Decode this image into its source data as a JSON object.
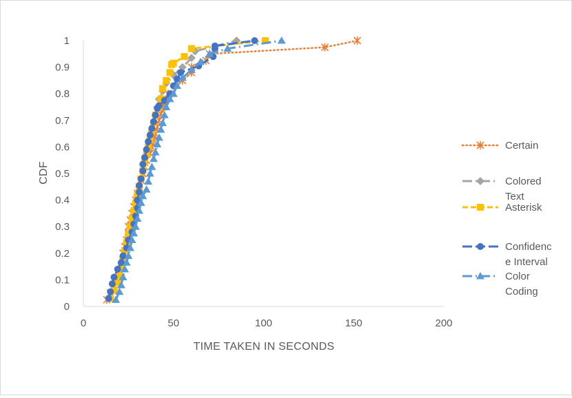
{
  "chart_data": {
    "type": "scatter",
    "title": "",
    "xlabel": "TIME TAKEN IN SECONDS",
    "ylabel": "CDF",
    "xlim": [
      0,
      200
    ],
    "ylim": [
      0,
      1
    ],
    "x_ticks": [
      "0",
      "50",
      "100",
      "150",
      "200"
    ],
    "y_ticks": [
      "0",
      "0.1",
      "0.2",
      "0.3",
      "0.4",
      "0.5",
      "0.6",
      "0.7",
      "0.8",
      "0.9",
      "1"
    ],
    "grid": "horizontal-none",
    "legend_position": "right",
    "series": [
      {
        "name": "Certain",
        "color": "#ED7D31",
        "marker": "asterisk",
        "line": "dotted",
        "points": [
          [
            13,
            0.025
          ],
          [
            15,
            0.05
          ],
          [
            17,
            0.075
          ],
          [
            19,
            0.1
          ],
          [
            20,
            0.125
          ],
          [
            21,
            0.15
          ],
          [
            22,
            0.175
          ],
          [
            22,
            0.2
          ],
          [
            23,
            0.225
          ],
          [
            24,
            0.25
          ],
          [
            25,
            0.275
          ],
          [
            25,
            0.3
          ],
          [
            26,
            0.325
          ],
          [
            27,
            0.35
          ],
          [
            28,
            0.375
          ],
          [
            29,
            0.4
          ],
          [
            30,
            0.425
          ],
          [
            31,
            0.45
          ],
          [
            32,
            0.475
          ],
          [
            33,
            0.5
          ],
          [
            34,
            0.525
          ],
          [
            35,
            0.55
          ],
          [
            37,
            0.575
          ],
          [
            38,
            0.6
          ],
          [
            39,
            0.625
          ],
          [
            40,
            0.65
          ],
          [
            41,
            0.675
          ],
          [
            42,
            0.7
          ],
          [
            43,
            0.725
          ],
          [
            44,
            0.75
          ],
          [
            45,
            0.775
          ],
          [
            47,
            0.8
          ],
          [
            55,
            0.85
          ],
          [
            60,
            0.88
          ],
          [
            60,
            0.9
          ],
          [
            68,
            0.925
          ],
          [
            70,
            0.95
          ],
          [
            134,
            0.975
          ],
          [
            152,
            1.0
          ]
        ]
      },
      {
        "name": "Colored Text",
        "color": "#A5A5A5",
        "marker": "diamond",
        "line": "dash-dot",
        "points": [
          [
            14,
            0.03
          ],
          [
            16,
            0.06
          ],
          [
            18,
            0.09
          ],
          [
            19,
            0.12
          ],
          [
            21,
            0.15
          ],
          [
            22,
            0.18
          ],
          [
            23,
            0.21
          ],
          [
            24,
            0.24
          ],
          [
            25,
            0.27
          ],
          [
            26,
            0.3
          ],
          [
            27,
            0.33
          ],
          [
            28,
            0.36
          ],
          [
            29,
            0.39
          ],
          [
            30,
            0.42
          ],
          [
            31,
            0.45
          ],
          [
            32,
            0.48
          ],
          [
            33,
            0.51
          ],
          [
            34,
            0.54
          ],
          [
            35,
            0.57
          ],
          [
            36,
            0.6
          ],
          [
            37,
            0.63
          ],
          [
            38,
            0.66
          ],
          [
            39,
            0.69
          ],
          [
            40,
            0.72
          ],
          [
            41,
            0.75
          ],
          [
            42,
            0.78
          ],
          [
            44,
            0.81
          ],
          [
            46,
            0.84
          ],
          [
            50,
            0.87
          ],
          [
            55,
            0.9
          ],
          [
            60,
            0.935
          ],
          [
            62,
            0.96
          ],
          [
            85,
            1.0
          ]
        ]
      },
      {
        "name": "Asterisk",
        "color": "#FFC000",
        "marker": "square",
        "line": "dashed",
        "points": [
          [
            15,
            0.03
          ],
          [
            17,
            0.06
          ],
          [
            19,
            0.09
          ],
          [
            20,
            0.12
          ],
          [
            21,
            0.15
          ],
          [
            22,
            0.18
          ],
          [
            23,
            0.21
          ],
          [
            24,
            0.24
          ],
          [
            25,
            0.27
          ],
          [
            26,
            0.3
          ],
          [
            27,
            0.33
          ],
          [
            28,
            0.36
          ],
          [
            29,
            0.39
          ],
          [
            30,
            0.42
          ],
          [
            31,
            0.45
          ],
          [
            32,
            0.48
          ],
          [
            33,
            0.51
          ],
          [
            34,
            0.54
          ],
          [
            35,
            0.57
          ],
          [
            36,
            0.6
          ],
          [
            37,
            0.63
          ],
          [
            38,
            0.66
          ],
          [
            39,
            0.69
          ],
          [
            40,
            0.72
          ],
          [
            42,
            0.75
          ],
          [
            43,
            0.78
          ],
          [
            44,
            0.82
          ],
          [
            46,
            0.85
          ],
          [
            48,
            0.88
          ],
          [
            49,
            0.91
          ],
          [
            50,
            0.915
          ],
          [
            56,
            0.94
          ],
          [
            60,
            0.97
          ],
          [
            101,
            1.0
          ]
        ]
      },
      {
        "name": "Confidence Interval",
        "color": "#4472C4",
        "marker": "circle",
        "line": "long-dashed",
        "points": [
          [
            14,
            0.03
          ],
          [
            15,
            0.055
          ],
          [
            16,
            0.085
          ],
          [
            17,
            0.11
          ],
          [
            19,
            0.14
          ],
          [
            21,
            0.165
          ],
          [
            22,
            0.19
          ],
          [
            24,
            0.22
          ],
          [
            25,
            0.25
          ],
          [
            27,
            0.28
          ],
          [
            28,
            0.31
          ],
          [
            29,
            0.34
          ],
          [
            30,
            0.37
          ],
          [
            30,
            0.4
          ],
          [
            31,
            0.43
          ],
          [
            31,
            0.455
          ],
          [
            32,
            0.48
          ],
          [
            33,
            0.51
          ],
          [
            33,
            0.535
          ],
          [
            34,
            0.56
          ],
          [
            35,
            0.59
          ],
          [
            36,
            0.62
          ],
          [
            37,
            0.645
          ],
          [
            38,
            0.67
          ],
          [
            39,
            0.695
          ],
          [
            40,
            0.72
          ],
          [
            41,
            0.745
          ],
          [
            42,
            0.755
          ],
          [
            45,
            0.775
          ],
          [
            48,
            0.8
          ],
          [
            50,
            0.83
          ],
          [
            52,
            0.855
          ],
          [
            54,
            0.88
          ],
          [
            64,
            0.905
          ],
          [
            72,
            0.94
          ],
          [
            73,
            0.97
          ],
          [
            73,
            0.98
          ],
          [
            95,
            1.0
          ]
        ]
      },
      {
        "name": "Color Coding",
        "color": "#5B9BD5",
        "marker": "triangle",
        "line": "dash-dot",
        "points": [
          [
            18,
            0.025
          ],
          [
            20,
            0.055
          ],
          [
            21,
            0.08
          ],
          [
            22,
            0.11
          ],
          [
            23,
            0.14
          ],
          [
            24,
            0.165
          ],
          [
            25,
            0.19
          ],
          [
            26,
            0.22
          ],
          [
            27,
            0.25
          ],
          [
            28,
            0.275
          ],
          [
            29,
            0.3
          ],
          [
            30,
            0.33
          ],
          [
            31,
            0.36
          ],
          [
            32,
            0.39
          ],
          [
            33,
            0.415
          ],
          [
            35,
            0.44
          ],
          [
            36,
            0.47
          ],
          [
            37,
            0.5
          ],
          [
            38,
            0.525
          ],
          [
            39,
            0.555
          ],
          [
            40,
            0.58
          ],
          [
            41,
            0.61
          ],
          [
            42,
            0.635
          ],
          [
            43,
            0.665
          ],
          [
            44,
            0.69
          ],
          [
            45,
            0.72
          ],
          [
            46,
            0.75
          ],
          [
            48,
            0.78
          ],
          [
            50,
            0.8
          ],
          [
            52,
            0.83
          ],
          [
            55,
            0.86
          ],
          [
            60,
            0.89
          ],
          [
            65,
            0.92
          ],
          [
            70,
            0.95
          ],
          [
            80,
            0.97
          ],
          [
            110,
            1.0
          ]
        ]
      }
    ]
  }
}
